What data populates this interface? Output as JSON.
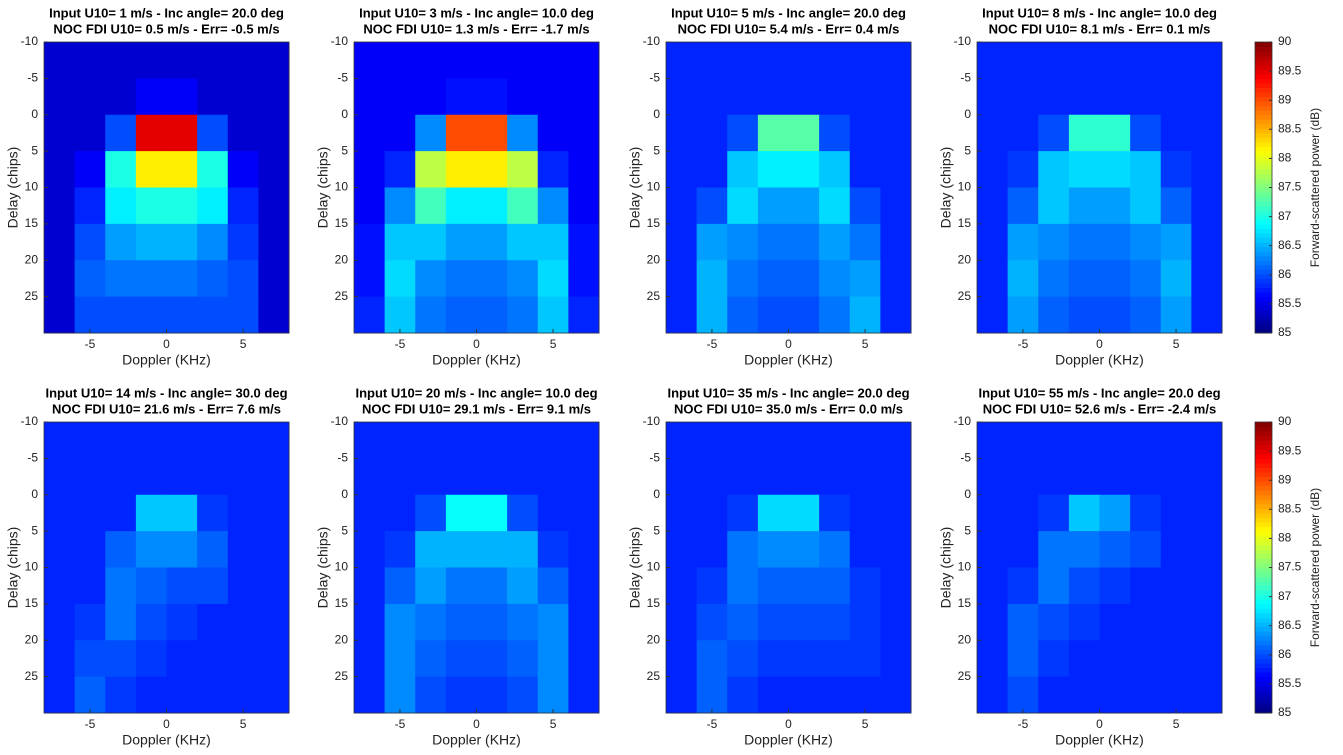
{
  "chart_data": [
    {
      "type": "heatmap",
      "title": "Input U10= 1 m/s - Inc angle= 20.0 deg",
      "subtitle": "NOC FDI U10= 0.5 m/s - Err= -0.5 m/s",
      "xlabel": "Doppler (KHz)",
      "ylabel": "Delay (chips)",
      "xlim": [
        -8,
        8
      ],
      "ylim": [
        -10,
        30
      ],
      "y_reversed": true,
      "xticks": [
        -5,
        0,
        5
      ],
      "yticks": [
        -10,
        -5,
        0,
        5,
        10,
        15,
        20,
        25
      ],
      "clim": [
        85,
        90
      ],
      "xbins": [
        -8,
        -6,
        -4,
        -2,
        0,
        2,
        4,
        6,
        8
      ],
      "ybins": [
        -10,
        -5,
        0,
        5,
        10,
        15,
        20,
        25,
        30
      ],
      "z": [
        [
          85.4,
          85.4,
          85.4,
          85.4,
          85.4,
          85.4,
          85.4,
          85.4
        ],
        [
          85.4,
          85.4,
          85.4,
          85.6,
          85.6,
          85.4,
          85.4,
          85.4
        ],
        [
          85.4,
          85.4,
          86.0,
          89.5,
          89.5,
          86.0,
          85.4,
          85.4
        ],
        [
          85.4,
          85.6,
          87.0,
          88.2,
          88.2,
          87.0,
          85.6,
          85.4
        ],
        [
          85.4,
          85.8,
          86.8,
          87.0,
          87.0,
          86.8,
          85.8,
          85.4
        ],
        [
          85.4,
          86.0,
          86.4,
          86.5,
          86.5,
          86.3,
          85.9,
          85.4
        ],
        [
          85.4,
          86.1,
          86.2,
          86.2,
          86.2,
          86.1,
          86.0,
          85.4
        ],
        [
          85.4,
          86.0,
          86.0,
          86.0,
          86.0,
          86.0,
          86.0,
          85.4
        ]
      ]
    },
    {
      "type": "heatmap",
      "title": "Input U10= 3 m/s - Inc angle= 10.0 deg",
      "subtitle": "NOC FDI U10= 1.3 m/s - Err= -1.7 m/s",
      "xlabel": "Doppler (KHz)",
      "ylabel": "Delay (chips)",
      "xlim": [
        -8,
        8
      ],
      "ylim": [
        -10,
        30
      ],
      "y_reversed": true,
      "xticks": [
        -5,
        0,
        5
      ],
      "yticks": [
        -10,
        -5,
        0,
        5,
        10,
        15,
        20,
        25
      ],
      "clim": [
        85,
        90
      ],
      "xbins": [
        -8,
        -6,
        -4,
        -2,
        0,
        2,
        4,
        6,
        8
      ],
      "ybins": [
        -10,
        -5,
        0,
        5,
        10,
        15,
        20,
        25,
        30
      ],
      "z": [
        [
          85.6,
          85.6,
          85.6,
          85.6,
          85.6,
          85.6,
          85.6,
          85.6
        ],
        [
          85.6,
          85.6,
          85.6,
          85.7,
          85.7,
          85.6,
          85.6,
          85.6
        ],
        [
          85.6,
          85.6,
          86.3,
          89.0,
          89.0,
          86.3,
          85.6,
          85.6
        ],
        [
          85.6,
          85.8,
          87.8,
          88.2,
          88.2,
          87.8,
          85.8,
          85.6
        ],
        [
          85.6,
          86.3,
          87.2,
          86.8,
          86.8,
          87.2,
          86.3,
          85.6
        ],
        [
          85.7,
          86.6,
          86.6,
          86.4,
          86.4,
          86.6,
          86.6,
          85.7
        ],
        [
          85.7,
          86.7,
          86.3,
          86.2,
          86.2,
          86.3,
          86.7,
          85.7
        ],
        [
          85.8,
          86.6,
          86.2,
          86.1,
          86.1,
          86.2,
          86.6,
          85.8
        ]
      ]
    },
    {
      "type": "heatmap",
      "title": "Input U10= 5 m/s - Inc angle= 20.0 deg",
      "subtitle": "NOC FDI U10= 5.4 m/s - Err= 0.4 m/s",
      "xlabel": "Doppler (KHz)",
      "ylabel": "Delay (chips)",
      "xlim": [
        -8,
        8
      ],
      "ylim": [
        -10,
        30
      ],
      "y_reversed": true,
      "xticks": [
        -5,
        0,
        5
      ],
      "yticks": [
        -10,
        -5,
        0,
        5,
        10,
        15,
        20,
        25
      ],
      "clim": [
        85,
        90
      ],
      "xbins": [
        -8,
        -6,
        -4,
        -2,
        0,
        2,
        4,
        6,
        8
      ],
      "ybins": [
        -10,
        -5,
        0,
        5,
        10,
        15,
        20,
        25,
        30
      ],
      "z": [
        [
          85.8,
          85.8,
          85.8,
          85.8,
          85.8,
          85.8,
          85.8,
          85.8
        ],
        [
          85.8,
          85.8,
          85.8,
          85.8,
          85.8,
          85.8,
          85.8,
          85.8
        ],
        [
          85.8,
          85.8,
          86.0,
          87.3,
          87.3,
          86.0,
          85.8,
          85.8
        ],
        [
          85.8,
          85.8,
          86.6,
          86.8,
          86.8,
          86.6,
          85.8,
          85.8
        ],
        [
          85.8,
          86.0,
          86.7,
          86.4,
          86.4,
          86.7,
          86.0,
          85.8
        ],
        [
          85.8,
          86.4,
          86.3,
          86.2,
          86.2,
          86.4,
          86.2,
          85.8
        ],
        [
          85.8,
          86.5,
          86.2,
          86.1,
          86.1,
          86.3,
          86.4,
          85.8
        ],
        [
          85.8,
          86.5,
          86.1,
          86.0,
          86.0,
          86.2,
          86.5,
          85.8
        ]
      ]
    },
    {
      "type": "heatmap",
      "title": "Input U10= 8 m/s - Inc angle= 10.0 deg",
      "subtitle": "NOC FDI U10= 8.1 m/s - Err= 0.1 m/s",
      "xlabel": "Doppler (KHz)",
      "ylabel": "Delay (chips)",
      "xlim": [
        -8,
        8
      ],
      "ylim": [
        -10,
        30
      ],
      "y_reversed": true,
      "xticks": [
        -5,
        0,
        5
      ],
      "yticks": [
        -10,
        -5,
        0,
        5,
        10,
        15,
        20,
        25
      ],
      "clim": [
        85,
        90
      ],
      "xbins": [
        -8,
        -6,
        -4,
        -2,
        0,
        2,
        4,
        6,
        8
      ],
      "ybins": [
        -10,
        -5,
        0,
        5,
        10,
        15,
        20,
        25,
        30
      ],
      "z": [
        [
          85.8,
          85.8,
          85.8,
          85.8,
          85.8,
          85.8,
          85.8,
          85.8
        ],
        [
          85.8,
          85.8,
          85.8,
          85.8,
          85.8,
          85.8,
          85.8,
          85.8
        ],
        [
          85.8,
          85.8,
          86.0,
          87.1,
          87.1,
          86.0,
          85.8,
          85.8
        ],
        [
          85.8,
          85.9,
          86.6,
          86.7,
          86.7,
          86.6,
          85.9,
          85.8
        ],
        [
          85.8,
          86.1,
          86.6,
          86.4,
          86.4,
          86.6,
          86.1,
          85.8
        ],
        [
          85.8,
          86.4,
          86.3,
          86.2,
          86.2,
          86.3,
          86.4,
          85.8
        ],
        [
          85.8,
          86.5,
          86.2,
          86.1,
          86.1,
          86.2,
          86.5,
          85.8
        ],
        [
          85.8,
          86.4,
          86.1,
          86.0,
          86.0,
          86.1,
          86.4,
          85.8
        ]
      ]
    },
    {
      "type": "heatmap",
      "title": "Input U10= 14 m/s - Inc angle= 30.0 deg",
      "subtitle": "NOC FDI U10= 21.6 m/s - Err= 7.6 m/s",
      "xlabel": "Doppler (KHz)",
      "ylabel": "Delay (chips)",
      "xlim": [
        -8,
        8
      ],
      "ylim": [
        -10,
        30
      ],
      "y_reversed": true,
      "xticks": [
        -5,
        0,
        5
      ],
      "yticks": [
        -10,
        -5,
        0,
        5,
        10,
        15,
        20,
        25
      ],
      "clim": [
        85,
        90
      ],
      "xbins": [
        -8,
        -6,
        -4,
        -2,
        0,
        2,
        4,
        6,
        8
      ],
      "ybins": [
        -10,
        -5,
        0,
        5,
        10,
        15,
        20,
        25,
        30
      ],
      "z": [
        [
          85.8,
          85.8,
          85.8,
          85.8,
          85.8,
          85.8,
          85.8,
          85.8
        ],
        [
          85.8,
          85.8,
          85.8,
          85.8,
          85.8,
          85.8,
          85.8,
          85.8
        ],
        [
          85.8,
          85.8,
          85.8,
          86.6,
          86.6,
          85.9,
          85.8,
          85.8
        ],
        [
          85.8,
          85.8,
          86.1,
          86.3,
          86.3,
          86.1,
          85.8,
          85.8
        ],
        [
          85.8,
          85.8,
          86.2,
          86.1,
          86.0,
          86.0,
          85.8,
          85.8
        ],
        [
          85.8,
          85.9,
          86.2,
          86.0,
          85.9,
          85.8,
          85.8,
          85.8
        ],
        [
          85.8,
          86.0,
          86.0,
          85.9,
          85.8,
          85.8,
          85.8,
          85.8
        ],
        [
          85.8,
          86.1,
          85.9,
          85.8,
          85.8,
          85.8,
          85.8,
          85.8
        ]
      ]
    },
    {
      "type": "heatmap",
      "title": "Input U10= 20 m/s - Inc angle= 10.0 deg",
      "subtitle": "NOC FDI U10= 29.1 m/s - Err= 9.1 m/s",
      "xlabel": "Doppler (KHz)",
      "ylabel": "Delay (chips)",
      "xlim": [
        -8,
        8
      ],
      "ylim": [
        -10,
        30
      ],
      "y_reversed": true,
      "xticks": [
        -5,
        0,
        5
      ],
      "yticks": [
        -10,
        -5,
        0,
        5,
        10,
        15,
        20,
        25
      ],
      "clim": [
        85,
        90
      ],
      "xbins": [
        -8,
        -6,
        -4,
        -2,
        0,
        2,
        4,
        6,
        8
      ],
      "ybins": [
        -10,
        -5,
        0,
        5,
        10,
        15,
        20,
        25,
        30
      ],
      "z": [
        [
          85.8,
          85.8,
          85.8,
          85.8,
          85.8,
          85.8,
          85.8,
          85.8
        ],
        [
          85.8,
          85.8,
          85.8,
          85.8,
          85.8,
          85.8,
          85.8,
          85.8
        ],
        [
          85.8,
          85.8,
          86.0,
          86.9,
          86.9,
          86.0,
          85.8,
          85.8
        ],
        [
          85.8,
          85.9,
          86.5,
          86.5,
          86.5,
          86.5,
          85.9,
          85.8
        ],
        [
          85.8,
          86.1,
          86.4,
          86.2,
          86.2,
          86.4,
          86.1,
          85.8
        ],
        [
          85.8,
          86.3,
          86.2,
          86.1,
          86.1,
          86.2,
          86.3,
          85.8
        ],
        [
          85.8,
          86.3,
          86.1,
          86.0,
          86.0,
          86.1,
          86.3,
          85.8
        ],
        [
          85.8,
          86.3,
          86.0,
          85.9,
          85.9,
          86.0,
          86.3,
          85.8
        ]
      ]
    },
    {
      "type": "heatmap",
      "title": "Input U10= 35 m/s - Inc angle= 20.0 deg",
      "subtitle": "NOC FDI U10= 35.0 m/s - Err= 0.0 m/s",
      "xlabel": "Doppler (KHz)",
      "ylabel": "Delay (chips)",
      "xlim": [
        -8,
        8
      ],
      "ylim": [
        -10,
        30
      ],
      "y_reversed": true,
      "xticks": [
        -5,
        0,
        5
      ],
      "yticks": [
        -10,
        -5,
        0,
        5,
        10,
        15,
        20,
        25
      ],
      "clim": [
        85,
        90
      ],
      "xbins": [
        -8,
        -6,
        -4,
        -2,
        0,
        2,
        4,
        6,
        8
      ],
      "ybins": [
        -10,
        -5,
        0,
        5,
        10,
        15,
        20,
        25,
        30
      ],
      "z": [
        [
          85.8,
          85.8,
          85.8,
          85.8,
          85.8,
          85.8,
          85.8,
          85.8
        ],
        [
          85.8,
          85.8,
          85.8,
          85.8,
          85.8,
          85.8,
          85.8,
          85.8
        ],
        [
          85.8,
          85.8,
          85.9,
          86.7,
          86.7,
          85.9,
          85.8,
          85.8
        ],
        [
          85.8,
          85.8,
          86.2,
          86.3,
          86.3,
          86.2,
          85.8,
          85.8
        ],
        [
          85.8,
          85.9,
          86.2,
          86.1,
          86.1,
          86.1,
          85.9,
          85.8
        ],
        [
          85.8,
          86.0,
          86.1,
          86.0,
          86.0,
          86.0,
          85.9,
          85.8
        ],
        [
          85.8,
          86.1,
          86.0,
          85.9,
          85.9,
          85.9,
          85.9,
          85.8
        ],
        [
          85.8,
          86.1,
          85.9,
          85.8,
          85.8,
          85.8,
          85.8,
          85.8
        ]
      ]
    },
    {
      "type": "heatmap",
      "title": "Input U10= 55 m/s - Inc angle= 20.0 deg",
      "subtitle": "NOC FDI U10= 52.6 m/s - Err= -2.4 m/s",
      "xlabel": "Doppler (KHz)",
      "ylabel": "Delay (chips)",
      "xlim": [
        -8,
        8
      ],
      "ylim": [
        -10,
        30
      ],
      "y_reversed": true,
      "xticks": [
        -5,
        0,
        5
      ],
      "yticks": [
        -10,
        -5,
        0,
        5,
        10,
        15,
        20,
        25
      ],
      "clim": [
        85,
        90
      ],
      "xbins": [
        -8,
        -6,
        -4,
        -2,
        0,
        2,
        4,
        6,
        8
      ],
      "ybins": [
        -10,
        -5,
        0,
        5,
        10,
        15,
        20,
        25,
        30
      ],
      "z": [
        [
          85.8,
          85.8,
          85.8,
          85.8,
          85.8,
          85.8,
          85.8,
          85.8
        ],
        [
          85.8,
          85.8,
          85.8,
          85.8,
          85.8,
          85.8,
          85.8,
          85.8
        ],
        [
          85.8,
          85.8,
          85.9,
          86.6,
          86.4,
          85.9,
          85.8,
          85.8
        ],
        [
          85.8,
          85.8,
          86.2,
          86.2,
          86.1,
          86.0,
          85.8,
          85.8
        ],
        [
          85.8,
          85.9,
          86.2,
          86.0,
          85.9,
          85.8,
          85.8,
          85.8
        ],
        [
          85.8,
          86.1,
          86.0,
          85.9,
          85.8,
          85.8,
          85.8,
          85.8
        ],
        [
          85.8,
          86.1,
          85.9,
          85.8,
          85.8,
          85.8,
          85.8,
          85.8
        ],
        [
          85.8,
          86.0,
          85.8,
          85.8,
          85.8,
          85.8,
          85.8,
          85.8
        ]
      ]
    },
    {
      "type": "colorbar",
      "label": "Forward-scattered power (dB)",
      "clim": [
        85,
        90
      ],
      "cticks": [
        85,
        85.5,
        86,
        86.5,
        87,
        87.5,
        88,
        88.5,
        89,
        89.5,
        90
      ]
    },
    {
      "type": "colorbar",
      "label": "Forward-scattered power (dB)",
      "clim": [
        85,
        90
      ],
      "cticks": [
        85,
        85.5,
        86,
        86.5,
        87,
        87.5,
        88,
        88.5,
        89,
        89.5,
        90
      ]
    }
  ]
}
